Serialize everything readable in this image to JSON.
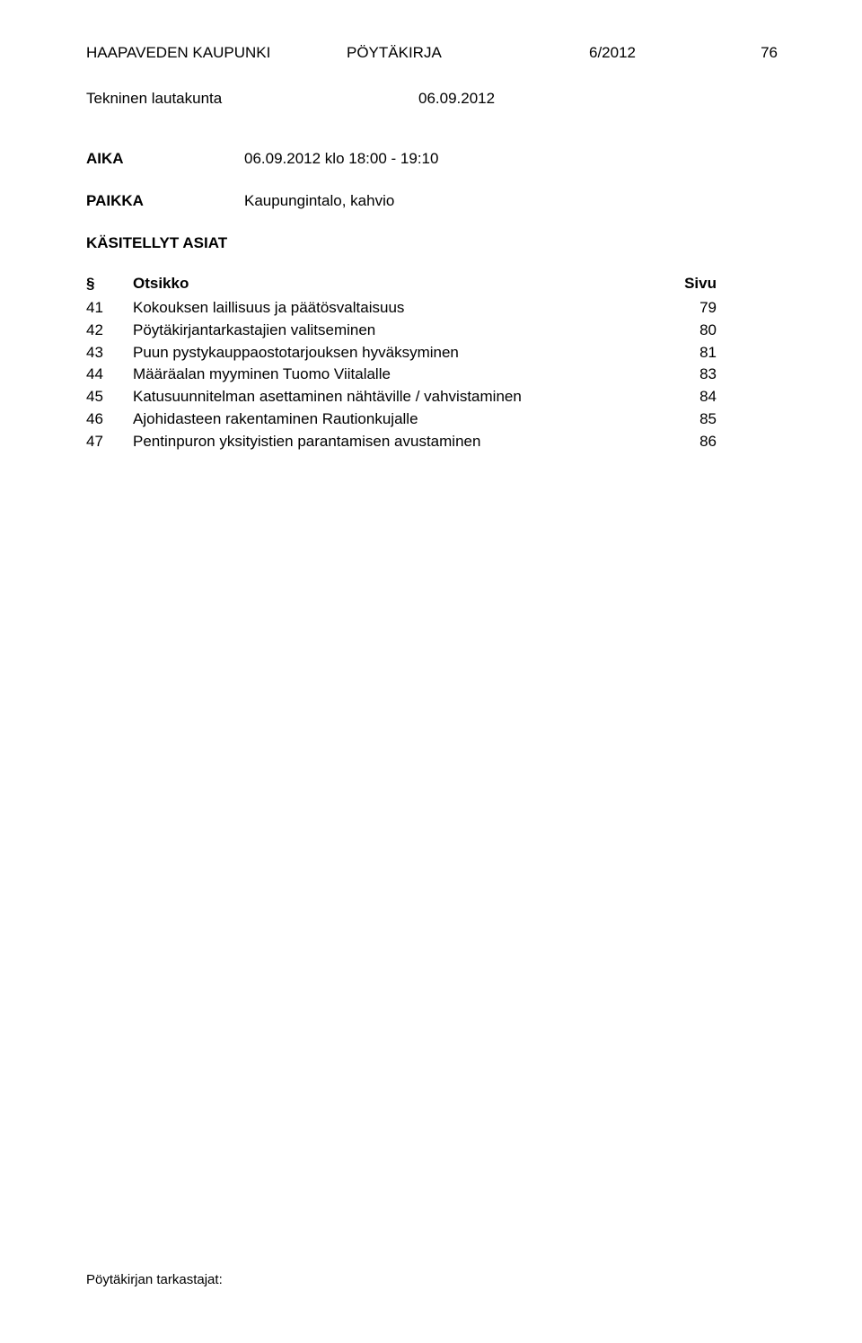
{
  "header": {
    "org": "HAAPAVEDEN KAUPUNKI",
    "doctype": "PÖYTÄKIRJA",
    "docnum": "6/2012",
    "page": "76"
  },
  "committee": {
    "name": "Tekninen lautakunta",
    "date": "06.09.2012"
  },
  "time": {
    "label": "AIKA",
    "value": "06.09.2012 klo 18:00 - 19:10"
  },
  "place": {
    "label": "PAIKKA",
    "value": "Kaupungintalo, kahvio"
  },
  "handled_title": "KÄSITELLYT ASIAT",
  "agenda_head": {
    "section": "§",
    "title": "Otsikko",
    "page": "Sivu"
  },
  "agenda": [
    {
      "section": "41",
      "title": "Kokouksen laillisuus ja päätösvaltaisuus",
      "page": "79"
    },
    {
      "section": "42",
      "title": "Pöytäkirjantarkastajien valitseminen",
      "page": "80"
    },
    {
      "section": "43",
      "title": "Puun pystykauppaostotarjouksen hyväksyminen",
      "page": "81"
    },
    {
      "section": "44",
      "title": "Määräalan myyminen Tuomo Viitalalle",
      "page": "83"
    },
    {
      "section": "45",
      "title": "Katusuunnitelman asettaminen nähtäville / vahvistaminen",
      "page": "84"
    },
    {
      "section": "46",
      "title": "Ajohidasteen rakentaminen Rautionkujalle",
      "page": "85"
    },
    {
      "section": "47",
      "title": "Pentinpuron yksityistien parantamisen avustaminen",
      "page": "86"
    }
  ],
  "footer": "Pöytäkirjan tarkastajat:"
}
